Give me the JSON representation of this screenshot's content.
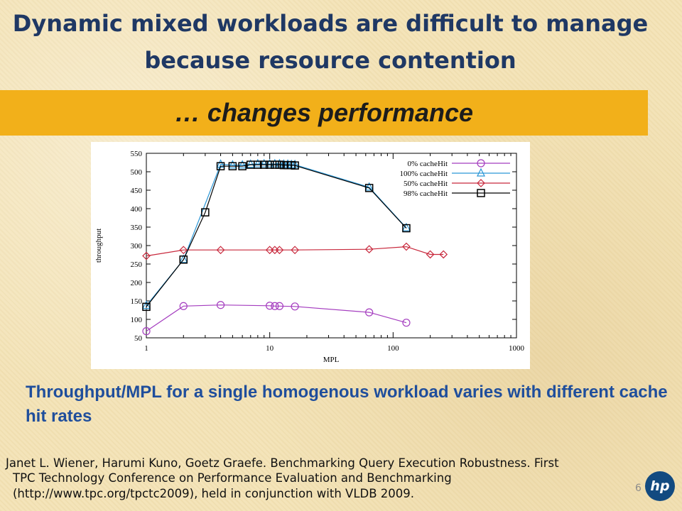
{
  "slide": {
    "title_line1": "Dynamic mixed workloads are difficult to manage",
    "title_line2": "because resource contention",
    "banner": "… changes performance",
    "caption": "Throughput/MPL for a single homogenous workload varies with different cache hit rates",
    "citation_line1": "Janet L. Wiener, Harumi Kuno, Goetz Graefe. Benchmarking Query Execution Robustness. First",
    "citation_line2": "TPC Technology Conference on Performance Evaluation and Benchmarking",
    "citation_line3": "(http://www.tpc.org/tpctc2009), held in conjunction with VLDB 2009.",
    "page_number": "6",
    "logo_text": "hp"
  },
  "colors": {
    "background": "#f3e3b6",
    "title": "#1f3864",
    "banner": "#f2b01a",
    "caption": "#1f4e9c",
    "logo": "#124a80"
  },
  "chart_data": {
    "type": "line",
    "title": "",
    "xlabel": "MPL",
    "ylabel": "throughput",
    "xscale": "log",
    "xlim": [
      1,
      1000
    ],
    "ylim": [
      50,
      550
    ],
    "xticks": [
      1,
      10,
      100,
      1000
    ],
    "xtick_labels": [
      "1",
      "10",
      "100",
      "1000"
    ],
    "yticks": [
      50,
      100,
      150,
      200,
      250,
      300,
      350,
      400,
      450,
      500,
      550
    ],
    "ytick_labels": [
      "50",
      "100",
      "150",
      "200",
      "250",
      "300",
      "350",
      "400",
      "450",
      "500",
      "550"
    ],
    "grid": false,
    "legend_position": "top-right",
    "series": [
      {
        "name": "0% cacheHit",
        "color": "#a43cbf",
        "marker": "circle",
        "x": [
          1,
          2,
          4,
          10,
          11,
          12,
          16,
          64,
          128
        ],
        "y": [
          68,
          136,
          139,
          137,
          136,
          136,
          135,
          119,
          91
        ]
      },
      {
        "name": "100% cacheHit",
        "color": "#2a96d6",
        "marker": "triangle",
        "x": [
          1,
          2,
          4,
          5,
          6,
          7,
          8,
          9,
          10,
          11,
          12,
          13,
          14,
          15,
          16,
          64,
          128
        ],
        "y": [
          137,
          262,
          520,
          518,
          518,
          520,
          521,
          521,
          521,
          521,
          521,
          520,
          520,
          519,
          519,
          458,
          348
        ]
      },
      {
        "name": "50% cacheHit",
        "color": "#c8283c",
        "marker": "diamond",
        "x": [
          1,
          2,
          4,
          10,
          11,
          12,
          16,
          64,
          128,
          200,
          256
        ],
        "y": [
          272,
          288,
          288,
          288,
          288,
          288,
          288,
          290,
          297,
          276,
          276
        ]
      },
      {
        "name": "98% cacheHit",
        "color": "#000000",
        "marker": "square",
        "x": [
          1,
          2,
          3,
          4,
          5,
          6,
          7,
          8,
          9,
          10,
          11,
          12,
          13,
          14,
          15,
          16,
          64,
          128
        ],
        "y": [
          134,
          262,
          390,
          515,
          515,
          515,
          519,
          519,
          519,
          519,
          519,
          519,
          518,
          518,
          518,
          517,
          456,
          347
        ]
      }
    ]
  }
}
